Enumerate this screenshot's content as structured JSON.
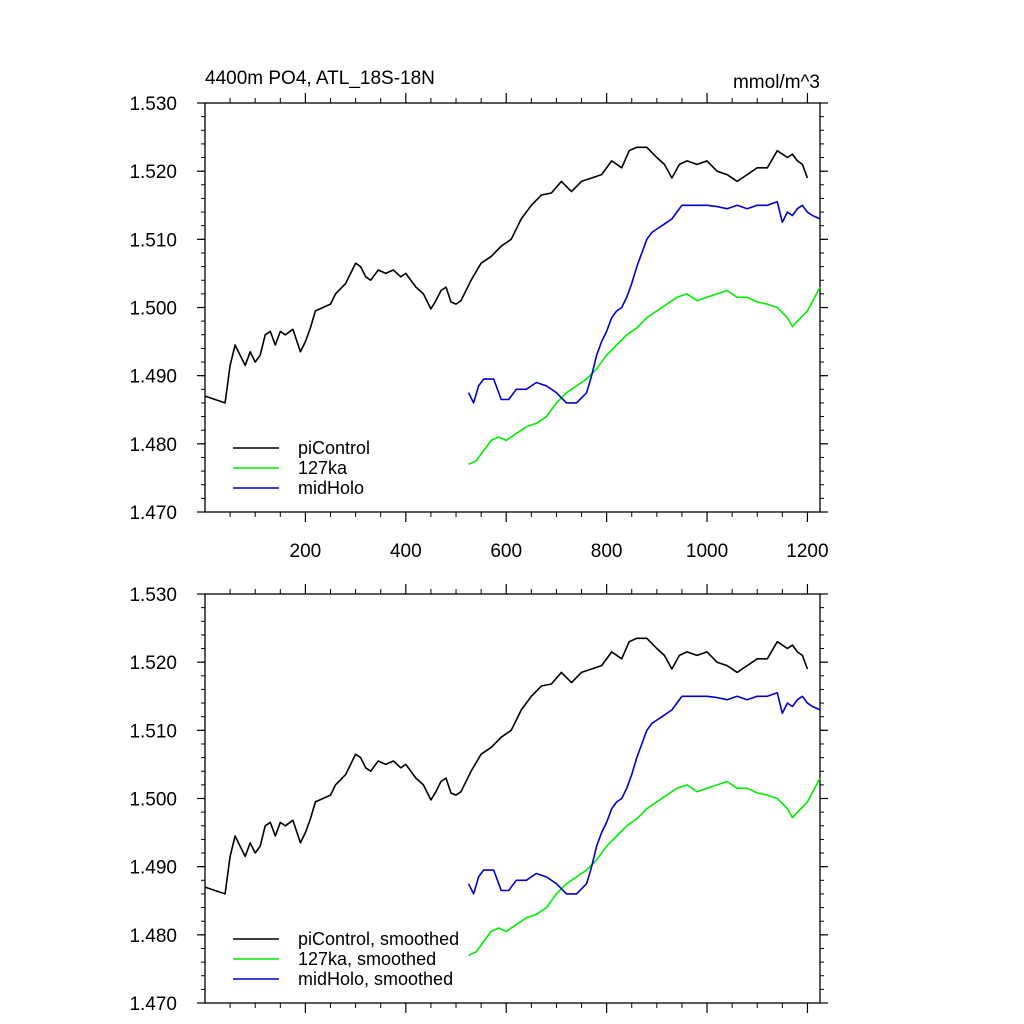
{
  "chart_data": [
    {
      "type": "line",
      "title": "4400m PO4, ATL_18S-18N",
      "units_label": "mmol/m^3",
      "xlabel": "",
      "ylabel": "",
      "xlim": [
        0,
        1225
      ],
      "ylim": [
        1.47,
        1.53
      ],
      "yticks": [
        1.47,
        1.48,
        1.49,
        1.5,
        1.51,
        1.52,
        1.53
      ],
      "ytick_labels": [
        "1.470",
        "1.480",
        "1.490",
        "1.500",
        "1.510",
        "1.520",
        "1.530"
      ],
      "xticks": [
        200,
        400,
        600,
        800,
        1000,
        1200
      ],
      "xtick_labels": [
        "200",
        "400",
        "600",
        "800",
        "1000",
        "1200"
      ],
      "grid": false,
      "legend_position": "bottom-left",
      "series": [
        {
          "name": "piControl",
          "color": "#000000",
          "x": [
            0,
            20,
            40,
            50,
            60,
            70,
            80,
            90,
            100,
            110,
            120,
            130,
            140,
            150,
            160,
            175,
            190,
            200,
            210,
            220,
            235,
            250,
            260,
            280,
            300,
            310,
            320,
            330,
            345,
            360,
            375,
            390,
            400,
            410,
            420,
            435,
            450,
            460,
            470,
            480,
            490,
            500,
            510,
            530,
            550,
            570,
            590,
            610,
            630,
            650,
            670,
            690,
            710,
            730,
            750,
            770,
            790,
            810,
            830,
            845,
            860,
            880,
            900,
            915,
            930,
            945,
            960,
            980,
            1000,
            1020,
            1040,
            1060,
            1080,
            1100,
            1120,
            1140,
            1160,
            1170,
            1180,
            1190,
            1200
          ],
          "y": [
            1.487,
            1.4865,
            1.486,
            1.4915,
            1.4945,
            1.493,
            1.4915,
            1.4935,
            1.492,
            1.493,
            1.496,
            1.4965,
            1.4945,
            1.4965,
            1.496,
            1.4968,
            1.4935,
            1.495,
            1.497,
            1.4995,
            1.5,
            1.5005,
            1.502,
            1.5035,
            1.5065,
            1.506,
            1.5045,
            1.504,
            1.5055,
            1.505,
            1.5055,
            1.5045,
            1.505,
            1.504,
            1.503,
            1.502,
            1.4998,
            1.501,
            1.5025,
            1.503,
            1.5008,
            1.5005,
            1.501,
            1.504,
            1.5065,
            1.5075,
            1.509,
            1.51,
            1.513,
            1.515,
            1.5165,
            1.5168,
            1.5185,
            1.517,
            1.5185,
            1.519,
            1.5195,
            1.5215,
            1.5205,
            1.523,
            1.5235,
            1.5235,
            1.522,
            1.521,
            1.519,
            1.521,
            1.5215,
            1.521,
            1.5215,
            1.52,
            1.5195,
            1.5185,
            1.5195,
            1.5205,
            1.5205,
            1.523,
            1.522,
            1.5225,
            1.5215,
            1.521,
            1.519
          ]
        },
        {
          "name": "127ka",
          "color": "#00ee00",
          "x": [
            525,
            540,
            555,
            570,
            585,
            600,
            620,
            640,
            660,
            680,
            700,
            720,
            740,
            760,
            780,
            800,
            820,
            840,
            860,
            880,
            900,
            920,
            940,
            960,
            980,
            1000,
            1020,
            1040,
            1060,
            1080,
            1100,
            1120,
            1140,
            1160,
            1170,
            1180,
            1200,
            1225
          ],
          "y": [
            1.477,
            1.4775,
            1.479,
            1.4805,
            1.481,
            1.4805,
            1.4815,
            1.4825,
            1.483,
            1.484,
            1.486,
            1.4875,
            1.4885,
            1.4895,
            1.491,
            1.493,
            1.4945,
            1.496,
            1.497,
            1.4985,
            1.4995,
            1.5005,
            1.5015,
            1.502,
            1.501,
            1.5015,
            1.502,
            1.5025,
            1.5015,
            1.5015,
            1.5008,
            1.5005,
            1.5,
            1.4985,
            1.4972,
            1.498,
            1.4995,
            1.503
          ]
        },
        {
          "name": "midHolo",
          "color": "#0000cc",
          "x": [
            525,
            535,
            545,
            555,
            575,
            590,
            605,
            620,
            640,
            660,
            680,
            700,
            720,
            740,
            760,
            770,
            780,
            790,
            800,
            810,
            820,
            830,
            840,
            850,
            860,
            870,
            880,
            890,
            900,
            910,
            920,
            930,
            940,
            950,
            960,
            980,
            1000,
            1020,
            1040,
            1060,
            1080,
            1100,
            1120,
            1140,
            1150,
            1160,
            1170,
            1180,
            1190,
            1200,
            1210,
            1225
          ],
          "y": [
            1.4875,
            1.486,
            1.4885,
            1.4895,
            1.4895,
            1.4865,
            1.4865,
            1.488,
            1.488,
            1.489,
            1.4885,
            1.4875,
            1.486,
            1.486,
            1.4875,
            1.49,
            1.493,
            1.495,
            1.4965,
            1.4985,
            1.4995,
            1.5,
            1.5015,
            1.5035,
            1.506,
            1.508,
            1.51,
            1.511,
            1.5115,
            1.512,
            1.5125,
            1.513,
            1.514,
            1.515,
            1.515,
            1.515,
            1.515,
            1.5148,
            1.5145,
            1.515,
            1.5145,
            1.515,
            1.515,
            1.5155,
            1.5125,
            1.514,
            1.5135,
            1.5145,
            1.515,
            1.514,
            1.5135,
            1.513
          ]
        }
      ]
    },
    {
      "type": "line",
      "title": "",
      "xlabel": "",
      "ylabel": "",
      "xlim": [
        0,
        1225
      ],
      "ylim": [
        1.47,
        1.53
      ],
      "yticks": [
        1.47,
        1.48,
        1.49,
        1.5,
        1.51,
        1.52,
        1.53
      ],
      "ytick_labels": [
        "1.470",
        "1.480",
        "1.490",
        "1.500",
        "1.510",
        "1.520",
        "1.530"
      ],
      "xticks": [
        200,
        400,
        600,
        800,
        1000,
        1200
      ],
      "xtick_labels": [],
      "grid": false,
      "legend_position": "bottom-left",
      "series": [
        {
          "name": "piControl, smoothed",
          "color": "#000000",
          "x": [
            0,
            20,
            40,
            50,
            60,
            70,
            80,
            90,
            100,
            110,
            120,
            130,
            140,
            150,
            160,
            175,
            190,
            200,
            210,
            220,
            235,
            250,
            260,
            280,
            300,
            310,
            320,
            330,
            345,
            360,
            375,
            390,
            400,
            410,
            420,
            435,
            450,
            460,
            470,
            480,
            490,
            500,
            510,
            530,
            550,
            570,
            590,
            610,
            630,
            650,
            670,
            690,
            710,
            730,
            750,
            770,
            790,
            810,
            830,
            845,
            860,
            880,
            900,
            915,
            930,
            945,
            960,
            980,
            1000,
            1020,
            1040,
            1060,
            1080,
            1100,
            1120,
            1140,
            1160,
            1170,
            1180,
            1190,
            1200
          ],
          "y": [
            1.487,
            1.4865,
            1.486,
            1.4915,
            1.4945,
            1.493,
            1.4915,
            1.4935,
            1.492,
            1.493,
            1.496,
            1.4965,
            1.4945,
            1.4965,
            1.496,
            1.4968,
            1.4935,
            1.495,
            1.497,
            1.4995,
            1.5,
            1.5005,
            1.502,
            1.5035,
            1.5065,
            1.506,
            1.5045,
            1.504,
            1.5055,
            1.505,
            1.5055,
            1.5045,
            1.505,
            1.504,
            1.503,
            1.502,
            1.4998,
            1.501,
            1.5025,
            1.503,
            1.5008,
            1.5005,
            1.501,
            1.504,
            1.5065,
            1.5075,
            1.509,
            1.51,
            1.513,
            1.515,
            1.5165,
            1.5168,
            1.5185,
            1.517,
            1.5185,
            1.519,
            1.5195,
            1.5215,
            1.5205,
            1.523,
            1.5235,
            1.5235,
            1.522,
            1.521,
            1.519,
            1.521,
            1.5215,
            1.521,
            1.5215,
            1.52,
            1.5195,
            1.5185,
            1.5195,
            1.5205,
            1.5205,
            1.523,
            1.522,
            1.5225,
            1.5215,
            1.521,
            1.519
          ]
        },
        {
          "name": "127ka, smoothed",
          "color": "#00ee00",
          "x": [
            525,
            540,
            555,
            570,
            585,
            600,
            620,
            640,
            660,
            680,
            700,
            720,
            740,
            760,
            780,
            800,
            820,
            840,
            860,
            880,
            900,
            920,
            940,
            960,
            980,
            1000,
            1020,
            1040,
            1060,
            1080,
            1100,
            1120,
            1140,
            1160,
            1170,
            1180,
            1200,
            1225
          ],
          "y": [
            1.477,
            1.4775,
            1.479,
            1.4805,
            1.481,
            1.4805,
            1.4815,
            1.4825,
            1.483,
            1.484,
            1.486,
            1.4875,
            1.4885,
            1.4895,
            1.491,
            1.493,
            1.4945,
            1.496,
            1.497,
            1.4985,
            1.4995,
            1.5005,
            1.5015,
            1.502,
            1.501,
            1.5015,
            1.502,
            1.5025,
            1.5015,
            1.5015,
            1.5008,
            1.5005,
            1.5,
            1.4985,
            1.4972,
            1.498,
            1.4995,
            1.503
          ]
        },
        {
          "name": "midHolo, smoothed",
          "color": "#0000cc",
          "x": [
            525,
            535,
            545,
            555,
            575,
            590,
            605,
            620,
            640,
            660,
            680,
            700,
            720,
            740,
            760,
            770,
            780,
            790,
            800,
            810,
            820,
            830,
            840,
            850,
            860,
            870,
            880,
            890,
            900,
            910,
            920,
            930,
            940,
            950,
            960,
            980,
            1000,
            1020,
            1040,
            1060,
            1080,
            1100,
            1120,
            1140,
            1150,
            1160,
            1170,
            1180,
            1190,
            1200,
            1210,
            1225
          ],
          "y": [
            1.4875,
            1.486,
            1.4885,
            1.4895,
            1.4895,
            1.4865,
            1.4865,
            1.488,
            1.488,
            1.489,
            1.4885,
            1.4875,
            1.486,
            1.486,
            1.4875,
            1.49,
            1.493,
            1.495,
            1.4965,
            1.4985,
            1.4995,
            1.5,
            1.5015,
            1.5035,
            1.506,
            1.508,
            1.51,
            1.511,
            1.5115,
            1.512,
            1.5125,
            1.513,
            1.514,
            1.515,
            1.515,
            1.515,
            1.515,
            1.5148,
            1.5145,
            1.515,
            1.5145,
            1.515,
            1.515,
            1.5155,
            1.5125,
            1.514,
            1.5135,
            1.5145,
            1.515,
            1.514,
            1.5135,
            1.513
          ]
        }
      ]
    }
  ]
}
